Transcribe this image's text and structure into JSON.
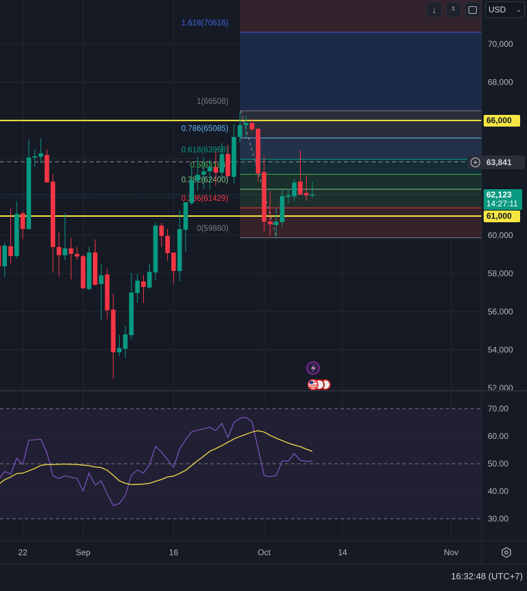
{
  "toolbar": {
    "scroll_down_icon": "arrow-down",
    "collapse_icon": "collapse",
    "fullscreen_icon": "fullscreen",
    "currency": "USD"
  },
  "colors": {
    "bg": "#161a25",
    "up": "#089981",
    "down": "#f23645",
    "level": "#f5e642",
    "rsi": "#7e57c2",
    "rsi_ma": "#e6d14a",
    "grid": "#232733"
  },
  "price_axis": {
    "ticks": [
      "70,000",
      "68,000",
      "60,000",
      "58,000",
      "56,000",
      "54,000",
      "52,000"
    ],
    "tick_values": [
      70000,
      68000,
      60000,
      58000,
      56000,
      54000,
      52000
    ]
  },
  "levels": [
    {
      "price": 66000,
      "label": "66,000"
    },
    {
      "price": 61000,
      "label": "61,000"
    }
  ],
  "crosshair": {
    "price": 63841,
    "label": "63,841"
  },
  "last_price": {
    "price": 62123,
    "label": "62,123",
    "countdown": "14:27:11"
  },
  "fib": [
    {
      "ratio": "1.618",
      "price": 70616,
      "label": "1.618(70616)",
      "color": "#3f62e0",
      "fill": "#1c2a4a"
    },
    {
      "ratio": "1",
      "price": 66508,
      "label": "1(66508)",
      "color": "#787b86",
      "fill": "#2a2d3a"
    },
    {
      "ratio": "0.786",
      "price": 65085,
      "label": "0.786(65085)",
      "color": "#64b5f6",
      "fill": "#23324a"
    },
    {
      "ratio": "0.618",
      "price": 63968,
      "label": "0.618(63968)",
      "color": "#089981",
      "fill": "#142e36"
    },
    {
      "ratio": "0.5",
      "price": 63184,
      "label": "0.5(63184)",
      "color": "#4caf50",
      "fill": "#19302c"
    },
    {
      "ratio": "0.382",
      "price": 62400,
      "label": "0.382(62400)",
      "color": "#81c784",
      "fill": "#1f2f2d"
    },
    {
      "ratio": "0.236",
      "price": 61429,
      "label": "0.236(61429)",
      "color": "#f23645",
      "fill": "#362229"
    },
    {
      "ratio": "0",
      "price": 59860,
      "label": "0(59860)",
      "color": "#787b86",
      "fill": null
    }
  ],
  "chart_data": {
    "type": "candlestick",
    "symbol_currency": "USD",
    "ylim": [
      51500,
      72000
    ],
    "candles": [
      [
        "Aug 18",
        59450,
        59520,
        57900,
        58370
      ],
      [
        "Aug 19",
        58370,
        59600,
        57800,
        59450
      ],
      [
        "Aug 20",
        59420,
        61400,
        58520,
        58910
      ],
      [
        "Aug 21",
        58910,
        61790,
        58800,
        61110
      ],
      [
        "Aug 22",
        61140,
        61250,
        59780,
        60320
      ],
      [
        "Aug 23",
        60320,
        65000,
        60300,
        64060
      ],
      [
        "Aug 24",
        64060,
        64490,
        63560,
        64130
      ],
      [
        "Aug 25",
        64100,
        65070,
        63770,
        64280
      ],
      [
        "Aug 26",
        64200,
        64490,
        62750,
        62760
      ],
      [
        "Aug 27",
        62800,
        63200,
        58050,
        59380
      ],
      [
        "Aug 28",
        59380,
        60170,
        57830,
        58950
      ],
      [
        "Aug 29",
        58950,
        61140,
        58700,
        59310
      ],
      [
        "Aug 30",
        59310,
        59850,
        57690,
        59020
      ],
      [
        "Aug 31",
        59020,
        59380,
        58700,
        58880
      ],
      [
        "Sep 1",
        58900,
        58980,
        57150,
        57220
      ],
      [
        "Sep 2",
        57180,
        59380,
        57110,
        59090
      ],
      [
        "Sep 3",
        59090,
        59780,
        57360,
        57400
      ],
      [
        "Sep 4",
        57440,
        58480,
        55530,
        57900
      ],
      [
        "Sep 5",
        57940,
        58260,
        55600,
        56070
      ],
      [
        "Sep 6",
        56100,
        56930,
        52470,
        53870
      ],
      [
        "Sep 7",
        53870,
        54770,
        53660,
        54090
      ],
      [
        "Sep 8",
        54050,
        55240,
        53580,
        54810
      ],
      [
        "Sep 9",
        54770,
        58010,
        54560,
        57000
      ],
      [
        "Sep 10",
        56970,
        57980,
        56460,
        57620
      ],
      [
        "Sep 11",
        57580,
        57900,
        56460,
        57290
      ],
      [
        "Sep 12",
        57260,
        58520,
        57180,
        58080
      ],
      [
        "Sep 13",
        58050,
        60680,
        57620,
        60500
      ],
      [
        "Sep 14",
        60500,
        60640,
        59380,
        59960
      ],
      [
        "Sep 15",
        59960,
        60320,
        58660,
        59060
      ],
      [
        "Sep 16",
        59090,
        59100,
        57440,
        58120
      ],
      [
        "Sep 17",
        58120,
        61290,
        57580,
        60320
      ],
      [
        "Sep 18",
        60280,
        61740,
        59130,
        61720
      ],
      [
        "Sep 19",
        61680,
        63590,
        61580,
        62870
      ],
      [
        "Sep 20",
        62870,
        64100,
        62330,
        63160
      ],
      [
        "Sep 21",
        63160,
        64100,
        62400,
        63340
      ],
      [
        "Sep 22",
        63340,
        63950,
        62400,
        63560
      ],
      [
        "Sep 23",
        63560,
        64380,
        62580,
        63270
      ],
      [
        "Sep 24",
        63270,
        64820,
        62940,
        64240
      ],
      [
        "Sep 25",
        64240,
        64740,
        63020,
        63090
      ],
      [
        "Sep 26",
        63050,
        65820,
        62690,
        65140
      ],
      [
        "Sep 27",
        65140,
        66500,
        64850,
        65750
      ],
      [
        "Sep 28",
        65750,
        66220,
        65100,
        65860
      ],
      [
        "Sep 29",
        65860,
        66080,
        65460,
        65540
      ],
      [
        "Sep 30",
        65570,
        65580,
        62840,
        63230
      ],
      [
        "Oct 1",
        63300,
        64100,
        60170,
        60710
      ],
      [
        "Oct 2",
        60710,
        62300,
        59960,
        60570
      ],
      [
        "Oct 3",
        60530,
        61430,
        59860,
        60710
      ],
      [
        "Oct 4",
        60680,
        62400,
        60420,
        62040
      ],
      [
        "Oct 5",
        62000,
        62400,
        61650,
        62080
      ],
      [
        "Oct 6",
        62030,
        62940,
        61760,
        62760
      ],
      [
        "Oct 7",
        62800,
        64460,
        62100,
        62120
      ],
      [
        "Oct 8",
        62200,
        63120,
        61790,
        62080
      ],
      [
        "Oct 9",
        62090,
        62780,
        61950,
        62123
      ]
    ],
    "rsi": {
      "ylim": [
        30,
        70
      ],
      "ticks": [
        "70.00",
        "60.00",
        "50.00",
        "40.00",
        "30.00"
      ],
      "tick_values": [
        70,
        60,
        50,
        40,
        30
      ],
      "values": [
        44.3,
        47.2,
        46.2,
        52,
        49.7,
        58.5,
        58.7,
        58.9,
        54,
        45.6,
        44.6,
        45.6,
        45.1,
        44.6,
        40.1,
        46.6,
        42.2,
        43.8,
        39,
        34.8,
        35.5,
        38.5,
        45.8,
        47.7,
        46.6,
        49.6,
        56.3,
        54.2,
        51.4,
        48.7,
        55.4,
        58.8,
        61.6,
        62.2,
        62.7,
        63.3,
        62,
        64.7,
        59.5,
        65,
        66.5,
        66.9,
        65.2,
        55.5,
        45.7,
        45.3,
        45.7,
        51,
        51,
        53.7,
        51.2,
        50.9,
        50.9
      ],
      "ma": [
        42.5,
        44.2,
        45.2,
        46.4,
        46.6,
        47.4,
        48.3,
        49.4,
        49.7,
        49.7,
        49.8,
        49.9,
        49.8,
        49.7,
        49.5,
        49.3,
        48.8,
        48.6,
        47.6,
        45.8,
        43.8,
        42.9,
        42.4,
        42.5,
        42.6,
        42.9,
        43.6,
        44.3,
        45.2,
        45.5,
        46.5,
        47.6,
        49.4,
        51.1,
        52.8,
        54.5,
        55.5,
        56.6,
        57.8,
        59,
        59.9,
        60.7,
        61.5,
        62,
        61.5,
        60.3,
        59.3,
        58.4,
        57.5,
        56.8,
        56.2,
        55.3,
        54.5
      ]
    },
    "time_axis": {
      "labels": [
        "22",
        "Sep",
        "16",
        "Oct",
        "14",
        "Nov"
      ],
      "label_index": [
        4,
        14,
        29,
        44,
        57,
        75
      ]
    }
  },
  "status": {
    "clock": "16:32:48 (UTC+7)"
  }
}
